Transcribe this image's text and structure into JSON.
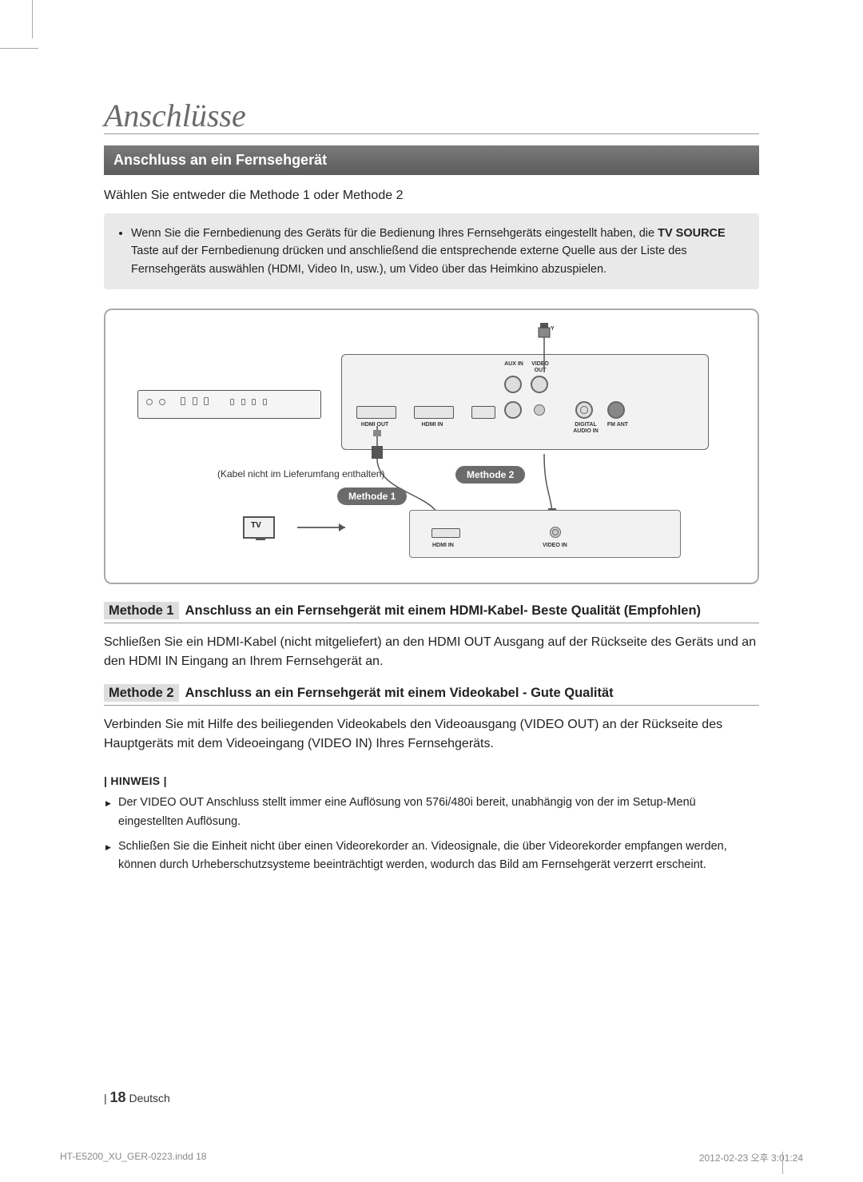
{
  "chapter": "Anschlüsse",
  "section_title": "Anschluss an ein Fernsehgerät",
  "intro": "Wählen Sie entweder die Methode 1 oder Methode 2",
  "tip_bullet": "Wenn Sie die Fernbedienung des Geräts für die Bedienung Ihres Fernsehgeräts eingestellt haben, die TV SOURCE Taste auf der Fernbedienung drücken und anschließend die entsprechende externe Quelle aus der Liste des Fernsehgeräts auswählen (HDMI, Video In, usw.), um Video über das Heimkino abzuspielen.",
  "tip_bold": "TV SOURCE",
  "diagram": {
    "cable_note": "(Kabel nicht im Lieferumfang enthalten)",
    "method1_pill": "Methode 1",
    "method2_pill": "Methode 2",
    "tv": "TV",
    "aux_in": "AUX IN",
    "video_out": "VIDEO OUT",
    "hdmi_out": "HDMI OUT",
    "hdmi_in": "HDMI IN",
    "digital_audio_in": "DIGITAL AUDIO IN",
    "fm_ant": "FM ANT",
    "tv_hdmi_in": "HDMI IN",
    "tv_video_in": "VIDEO IN"
  },
  "methods": [
    {
      "tag": "Methode 1",
      "title": "Anschluss an ein Fernsehgerät mit einem HDMI-Kabel- Beste Qualität (Empfohlen)",
      "body": "Schließen Sie ein HDMI-Kabel (nicht mitgeliefert) an den HDMI OUT Ausgang auf der Rückseite des Geräts und an den HDMI IN Eingang an Ihrem Fernsehgerät an."
    },
    {
      "tag": "Methode 2",
      "title": "Anschluss an ein Fernsehgerät mit einem Videokabel - Gute Qualität",
      "body": "Verbinden Sie mit Hilfe des beiliegenden Videokabels den Videoausgang (VIDEO OUT) an der Rückseite des Hauptgeräts mit dem Videoeingang (VIDEO IN) Ihres Fernsehgeräts."
    }
  ],
  "note_label": "| HINWEIS |",
  "notes": [
    "Der VIDEO OUT Anschluss stellt immer eine Auflösung von 576i/480i bereit, unabhängig von der im Setup-Menü eingestellten Auflösung.",
    "Schließen Sie die Einheit nicht über einen Videorekorder an. Videosignale, die über Videorekorder empfangen werden, können durch Urheberschutzsysteme beeinträchtigt werden, wodurch das Bild am Fernsehgerät verzerrt erscheint."
  ],
  "footer": {
    "sep": "|",
    "page": "18",
    "lang": "Deutsch"
  },
  "printline": {
    "file": "HT-E5200_XU_GER-0223.indd   18",
    "stamp": "2012-02-23   오후 3:01:24"
  }
}
